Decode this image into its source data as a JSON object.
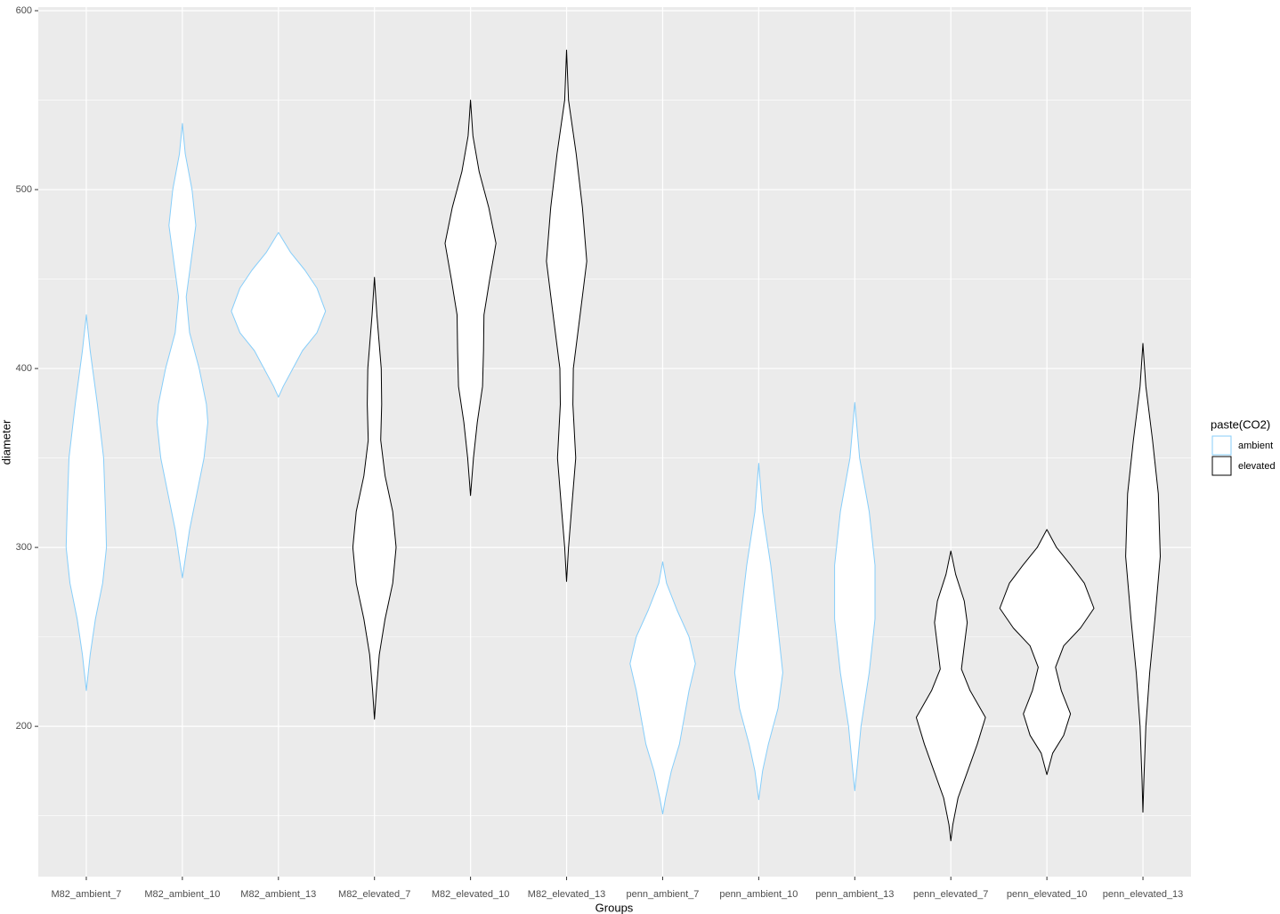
{
  "chart_data": {
    "type": "violin",
    "x_label": "Groups",
    "y_label": "diameter",
    "categories": [
      "M82_ambient_7",
      "M82_ambient_10",
      "M82_ambient_13",
      "M82_elevated_7",
      "M82_elevated_10",
      "M82_elevated_13",
      "penn_ambient_7",
      "penn_ambient_10",
      "penn_ambient_13",
      "penn_elevated_7",
      "penn_elevated_10",
      "penn_elevated_13"
    ],
    "ylim": [
      116,
      602
    ],
    "yticks": [
      200,
      300,
      400,
      500,
      600
    ],
    "yminor": [
      150,
      250,
      350,
      450,
      550
    ],
    "grid": true,
    "legend_title": "paste(CO2)",
    "legend_position": "right",
    "series": [
      {
        "name": "ambient",
        "color": "#87cefa",
        "violins": [
          {
            "y": [
              430,
              410,
              380,
              350,
              320,
              300,
              280,
              260,
              240,
              220
            ],
            "density": [
              0,
              0.08,
              0.23,
              0.36,
              0.4,
              0.42,
              0.34,
              0.19,
              0.08,
              0
            ]
          },
          {
            "y": [
              537,
              520,
              500,
              480,
              460,
              440,
              420,
              400,
              380,
              370,
              350,
              330,
              310,
              290,
              283
            ],
            "density": [
              0,
              0.06,
              0.2,
              0.28,
              0.18,
              0.08,
              0.15,
              0.35,
              0.5,
              0.53,
              0.45,
              0.3,
              0.15,
              0.04,
              0
            ]
          },
          {
            "y": [
              476,
              465,
              455,
              445,
              432,
              420,
              410,
              400,
              390,
              384
            ],
            "density": [
              0,
              0.25,
              0.55,
              0.8,
              0.98,
              0.8,
              0.5,
              0.3,
              0.1,
              0
            ]
          },
          null,
          null,
          null,
          {
            "y": [
              292,
              280,
              265,
              250,
              235,
              220,
              205,
              190,
              175,
              160,
              151
            ],
            "density": [
              0,
              0.08,
              0.3,
              0.55,
              0.68,
              0.55,
              0.45,
              0.35,
              0.18,
              0.06,
              0
            ]
          },
          {
            "y": [
              347,
              320,
              290,
              260,
              230,
              210,
              190,
              175,
              159
            ],
            "density": [
              0,
              0.08,
              0.25,
              0.38,
              0.5,
              0.4,
              0.2,
              0.08,
              0
            ]
          },
          {
            "y": [
              381,
              350,
              320,
              290,
              260,
              230,
              200,
              180,
              164
            ],
            "density": [
              0,
              0.1,
              0.3,
              0.42,
              0.42,
              0.3,
              0.13,
              0.06,
              0
            ]
          },
          null,
          null,
          null
        ]
      },
      {
        "name": "elevated",
        "color": "#000000",
        "violins": [
          null,
          null,
          null,
          {
            "y": [
              451,
              430,
              400,
              380,
              360,
              340,
              320,
              300,
              280,
              260,
              240,
              220,
              204
            ],
            "density": [
              0,
              0.05,
              0.14,
              0.15,
              0.13,
              0.22,
              0.38,
              0.45,
              0.38,
              0.22,
              0.1,
              0.04,
              0
            ]
          },
          {
            "y": [
              550,
              530,
              510,
              490,
              470,
              450,
              430,
              410,
              390,
              370,
              350,
              329
            ],
            "density": [
              0,
              0.05,
              0.18,
              0.38,
              0.53,
              0.4,
              0.28,
              0.27,
              0.25,
              0.14,
              0.06,
              0
            ]
          },
          {
            "y": [
              578,
              550,
              520,
              490,
              460,
              430,
              400,
              380,
              350,
              320,
              300,
              281
            ],
            "density": [
              0,
              0.04,
              0.2,
              0.33,
              0.42,
              0.28,
              0.14,
              0.13,
              0.19,
              0.1,
              0.04,
              0
            ]
          },
          null,
          null,
          null,
          {
            "y": [
              298,
              285,
              270,
              258,
              245,
              232,
              220,
              205,
              190,
              175,
              160,
              145,
              136
            ],
            "density": [
              0,
              0.1,
              0.28,
              0.34,
              0.28,
              0.22,
              0.4,
              0.72,
              0.55,
              0.35,
              0.15,
              0.04,
              0
            ]
          },
          {
            "y": [
              310,
              300,
              290,
              280,
              266,
              255,
              245,
              233,
              220,
              207,
              195,
              185,
              173
            ],
            "density": [
              0,
              0.2,
              0.5,
              0.78,
              0.98,
              0.7,
              0.35,
              0.18,
              0.3,
              0.49,
              0.35,
              0.12,
              0
            ]
          },
          {
            "y": [
              414,
              390,
              360,
              330,
              295,
              260,
              230,
              200,
              170,
              152
            ],
            "density": [
              0,
              0.06,
              0.2,
              0.32,
              0.36,
              0.25,
              0.14,
              0.06,
              0.02,
              0
            ]
          }
        ]
      }
    ]
  }
}
